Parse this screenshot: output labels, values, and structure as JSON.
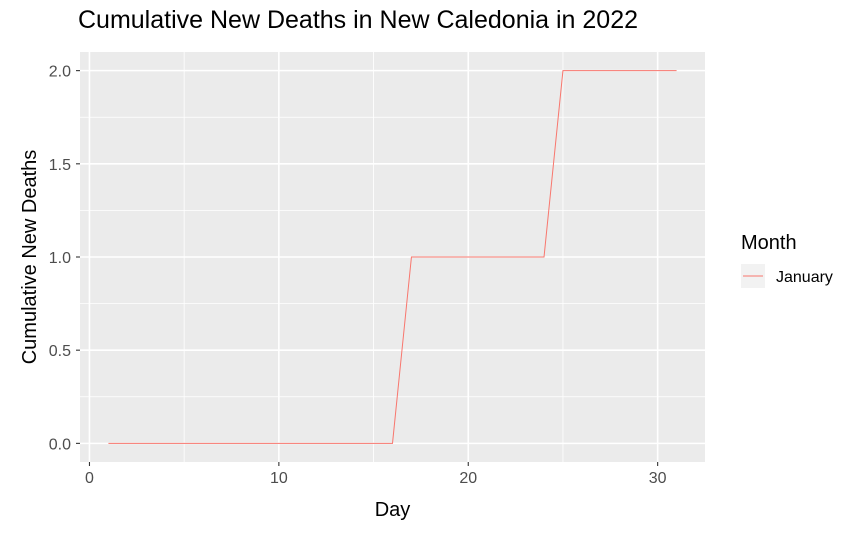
{
  "chart_data": {
    "type": "line",
    "title": "Cumulative New Deaths in New Caledonia in 2022",
    "xlabel": "Day",
    "ylabel": "Cumulative New Deaths",
    "xlim": [
      -0.5,
      32.5
    ],
    "ylim": [
      -0.1,
      2.1
    ],
    "x_ticks": [
      0,
      10,
      20,
      30
    ],
    "y_ticks": [
      "0.0",
      "0.5",
      "1.0",
      "1.5",
      "2.0"
    ],
    "grid": true,
    "legend": {
      "title": "Month",
      "placement": "right"
    },
    "series": [
      {
        "name": "January",
        "color": "#F8766D",
        "x": [
          1,
          2,
          3,
          4,
          5,
          6,
          7,
          8,
          9,
          10,
          11,
          12,
          13,
          14,
          15,
          16,
          17,
          18,
          19,
          20,
          21,
          22,
          23,
          24,
          25,
          26,
          27,
          28,
          29,
          30,
          31
        ],
        "y": [
          0,
          0,
          0,
          0,
          0,
          0,
          0,
          0,
          0,
          0,
          0,
          0,
          0,
          0,
          0,
          0,
          1,
          1,
          1,
          1,
          1,
          1,
          1,
          1,
          2,
          2,
          2,
          2,
          2,
          2,
          2
        ]
      }
    ]
  }
}
